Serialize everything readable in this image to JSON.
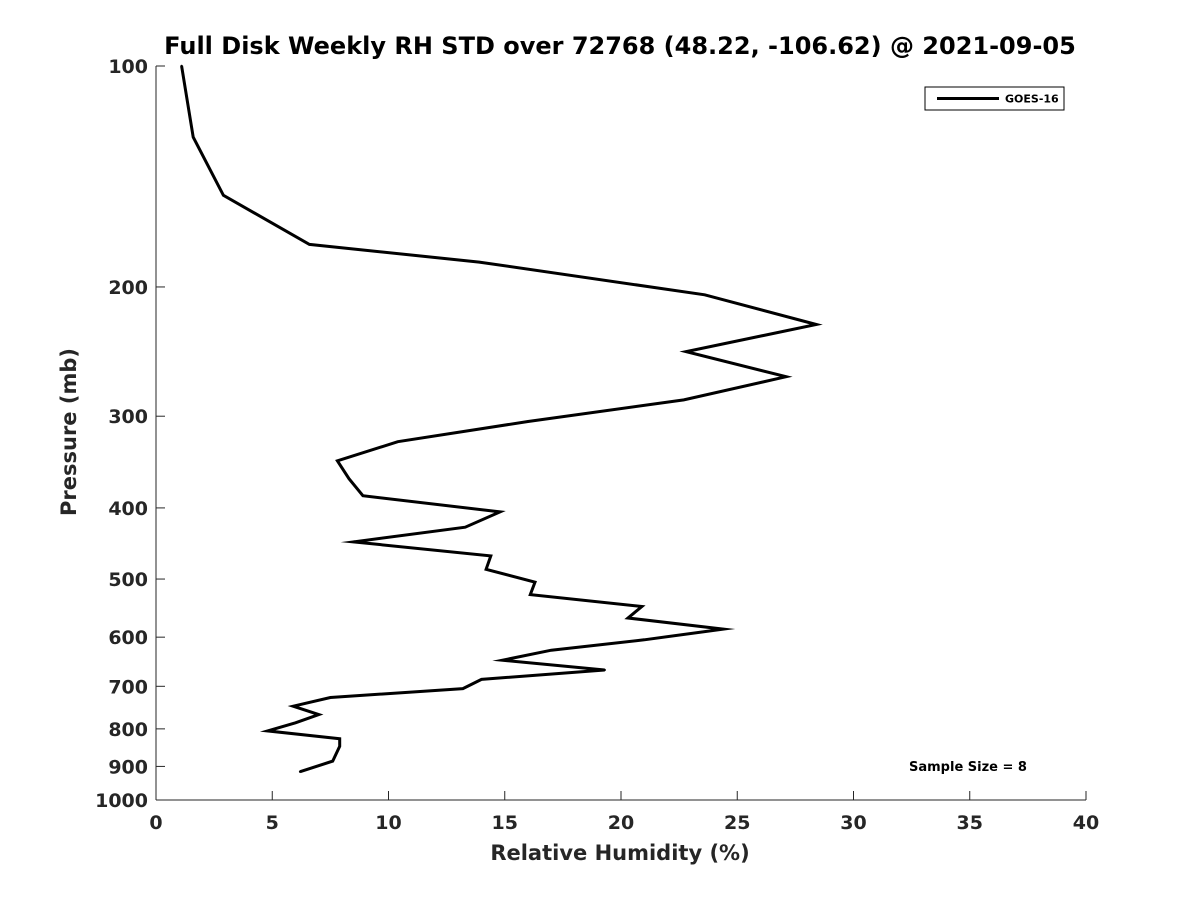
{
  "chart_data": {
    "type": "line",
    "title": "Full Disk Weekly RH STD over 72768 (48.22, -106.62) @ 2021-09-05",
    "xlabel": "Relative Humidity (%)",
    "ylabel": "Pressure (mb)",
    "xlim": [
      0,
      40
    ],
    "ylim": [
      100,
      1000
    ],
    "yscale": "log",
    "y_reversed": true,
    "grid": false,
    "x_ticks": [
      0,
      5,
      10,
      15,
      20,
      25,
      30,
      35,
      40
    ],
    "y_ticks": [
      100,
      200,
      300,
      400,
      500,
      600,
      700,
      800,
      900,
      1000
    ],
    "legend": {
      "position": "top-right",
      "entries": [
        "GOES-16"
      ]
    },
    "annotation": "Sample Size = 8",
    "series": [
      {
        "name": "GOES-16",
        "color": "#000000",
        "x": [
          1.1,
          1.6,
          2.9,
          6.6,
          13.9,
          23.6,
          28.4,
          22.8,
          27.1,
          22.7,
          16.0,
          10.4,
          7.8,
          8.3,
          8.9,
          14.8,
          13.3,
          8.5,
          14.4,
          14.2,
          16.3,
          16.1,
          20.9,
          20.3,
          24.4,
          21.0,
          17.0,
          14.9,
          19.3,
          14.0,
          13.2,
          7.5,
          5.9,
          7.0,
          6.0,
          4.8,
          7.9,
          7.9,
          7.6,
          6.2
        ],
        "y": [
          100,
          125,
          150,
          175,
          185,
          205,
          225,
          245,
          265,
          285,
          305,
          325,
          345,
          365,
          385,
          405,
          425,
          445,
          465,
          485,
          505,
          525,
          545,
          565,
          585,
          605,
          625,
          645,
          665,
          685,
          705,
          725,
          745,
          765,
          785,
          805,
          825,
          845,
          885,
          915
        ]
      }
    ]
  }
}
